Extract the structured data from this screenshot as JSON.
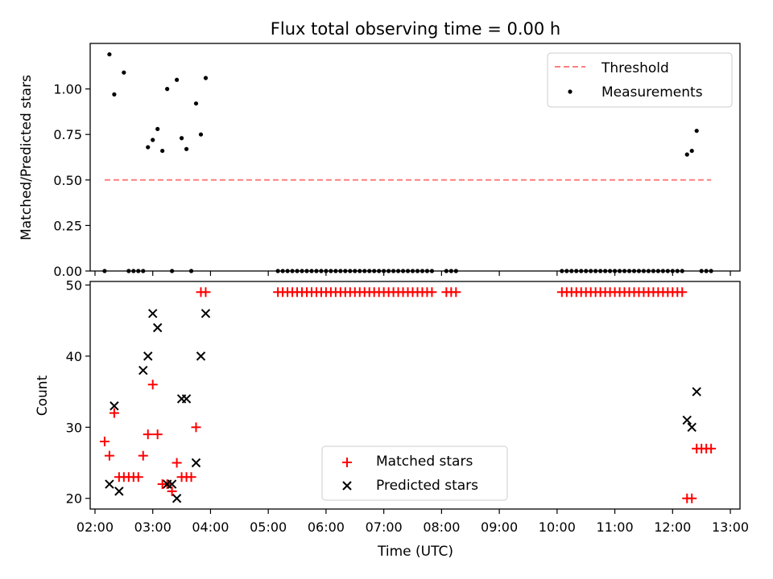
{
  "chart_data": [
    {
      "type": "scatter",
      "title": "Flux total observing time = 0.00 h",
      "ylabel": "Matched/Predicted stars",
      "xlabel": "",
      "ylim": [
        0,
        1.25
      ],
      "yticks": [
        0.0,
        0.25,
        0.5,
        0.75,
        1.0
      ],
      "ytick_labels": [
        "0.00",
        "0.25",
        "0.50",
        "0.75",
        "1.00"
      ],
      "legend_position": "top-right",
      "legend_entries": [
        "Threshold",
        "Measurements"
      ],
      "threshold": {
        "name": "Threshold",
        "value": 0.5,
        "x_range": [
          "02:10",
          "12:40"
        ],
        "color": "#ff7f7f",
        "style": "dashed"
      },
      "measurements": {
        "name": "Measurements",
        "color": "#000000",
        "x": [
          "02:10",
          "02:15",
          "02:20",
          "02:30",
          "02:35",
          "02:40",
          "02:45",
          "02:50",
          "02:55",
          "03:00",
          "03:05",
          "03:10",
          "03:15",
          "03:20",
          "03:25",
          "03:30",
          "03:35",
          "03:40",
          "03:45",
          "03:50",
          "03:55",
          "05:10",
          "05:15",
          "05:20",
          "05:25",
          "05:30",
          "05:35",
          "05:40",
          "05:45",
          "05:50",
          "05:55",
          "06:00",
          "06:05",
          "06:10",
          "06:15",
          "06:20",
          "06:25",
          "06:30",
          "06:35",
          "06:40",
          "06:45",
          "06:50",
          "06:55",
          "07:00",
          "07:05",
          "07:10",
          "07:15",
          "07:20",
          "07:25",
          "07:30",
          "07:35",
          "07:40",
          "07:45",
          "07:50",
          "08:05",
          "08:10",
          "08:15",
          "10:05",
          "10:10",
          "10:15",
          "10:20",
          "10:25",
          "10:30",
          "10:35",
          "10:40",
          "10:45",
          "10:50",
          "10:55",
          "11:00",
          "11:05",
          "11:10",
          "11:15",
          "11:20",
          "11:25",
          "11:30",
          "11:35",
          "11:40",
          "11:45",
          "11:50",
          "11:55",
          "12:00",
          "12:05",
          "12:10",
          "12:15",
          "12:20",
          "12:25",
          "12:30",
          "12:35",
          "12:40"
        ],
        "y": [
          0,
          1.19,
          0.97,
          1.09,
          0,
          0,
          0,
          0,
          0.68,
          0.72,
          0.78,
          0.66,
          1.0,
          0,
          1.05,
          0.73,
          0.67,
          0,
          0.92,
          0.75,
          1.06,
          0,
          0,
          0,
          0,
          0,
          0,
          0,
          0,
          0,
          0,
          0,
          0,
          0,
          0,
          0,
          0,
          0,
          0,
          0,
          0,
          0,
          0,
          0,
          0,
          0,
          0,
          0,
          0,
          0,
          0,
          0,
          0,
          0,
          0,
          0,
          0,
          0,
          0,
          0,
          0,
          0,
          0,
          0,
          0,
          0,
          0,
          0,
          0,
          0,
          0,
          0,
          0,
          0,
          0,
          0,
          0,
          0,
          0,
          0,
          0,
          0,
          0,
          0.64,
          0.66,
          0.77,
          0,
          0,
          0
        ]
      }
    },
    {
      "type": "scatter",
      "title": "",
      "ylabel": "Count",
      "xlabel": "Time (UTC)",
      "ylim": [
        18.5,
        50.5
      ],
      "yticks": [
        20,
        30,
        40,
        50
      ],
      "ytick_labels": [
        "20",
        "30",
        "40",
        "50"
      ],
      "xlim": [
        "01:55",
        "13:10"
      ],
      "xticks": [
        "02:00",
        "03:00",
        "04:00",
        "05:00",
        "06:00",
        "07:00",
        "08:00",
        "09:00",
        "10:00",
        "11:00",
        "12:00",
        "13:00"
      ],
      "legend_position": "lower-center",
      "legend_entries": [
        "Matched stars",
        "Predicted stars"
      ],
      "series": [
        {
          "name": "Matched stars",
          "marker": "plus",
          "color": "#ff0000",
          "x": [
            "02:10",
            "02:15",
            "02:20",
            "02:25",
            "02:30",
            "02:35",
            "02:40",
            "02:45",
            "02:50",
            "02:55",
            "03:00",
            "03:05",
            "03:10",
            "03:15",
            "03:20",
            "03:25",
            "03:30",
            "03:35",
            "03:40",
            "03:45",
            "03:50",
            "03:55",
            "05:10",
            "05:15",
            "05:20",
            "05:25",
            "05:30",
            "05:35",
            "05:40",
            "05:45",
            "05:50",
            "05:55",
            "06:00",
            "06:05",
            "06:10",
            "06:15",
            "06:20",
            "06:25",
            "06:30",
            "06:35",
            "06:40",
            "06:45",
            "06:50",
            "06:55",
            "07:00",
            "07:05",
            "07:10",
            "07:15",
            "07:20",
            "07:25",
            "07:30",
            "07:35",
            "07:40",
            "07:45",
            "07:50",
            "08:05",
            "08:10",
            "08:15",
            "10:05",
            "10:10",
            "10:15",
            "10:20",
            "10:25",
            "10:30",
            "10:35",
            "10:40",
            "10:45",
            "10:50",
            "10:55",
            "11:00",
            "11:05",
            "11:10",
            "11:15",
            "11:20",
            "11:25",
            "11:30",
            "11:35",
            "11:40",
            "11:45",
            "11:50",
            "11:55",
            "12:00",
            "12:05",
            "12:10",
            "12:15",
            "12:20",
            "12:25",
            "12:30",
            "12:35",
            "12:40"
          ],
          "y": [
            28,
            26,
            32,
            23,
            23,
            23,
            23,
            23,
            26,
            29,
            36,
            29,
            22,
            22,
            21,
            25,
            23,
            23,
            23,
            30,
            49,
            49,
            49,
            49,
            49,
            49,
            49,
            49,
            49,
            49,
            49,
            49,
            49,
            49,
            49,
            49,
            49,
            49,
            49,
            49,
            49,
            49,
            49,
            49,
            49,
            49,
            49,
            49,
            49,
            49,
            49,
            49,
            49,
            49,
            49,
            49,
            49,
            49,
            49,
            49,
            49,
            49,
            49,
            49,
            49,
            49,
            49,
            49,
            49,
            49,
            49,
            49,
            49,
            49,
            49,
            49,
            49,
            49,
            49,
            49,
            49,
            49,
            49,
            49,
            20,
            20,
            27,
            27,
            27,
            27
          ]
        },
        {
          "name": "Predicted stars",
          "marker": "x",
          "color": "#000000",
          "x": [
            "02:15",
            "02:20",
            "02:25",
            "02:50",
            "02:55",
            "03:00",
            "03:05",
            "03:15",
            "03:20",
            "03:25",
            "03:30",
            "03:35",
            "03:45",
            "03:50",
            "03:55",
            "12:15",
            "12:20",
            "12:25"
          ],
          "y": [
            22,
            33,
            21,
            38,
            40,
            46,
            44,
            22,
            22,
            20,
            34,
            34,
            25,
            40,
            46,
            31,
            30,
            35
          ]
        }
      ]
    }
  ]
}
